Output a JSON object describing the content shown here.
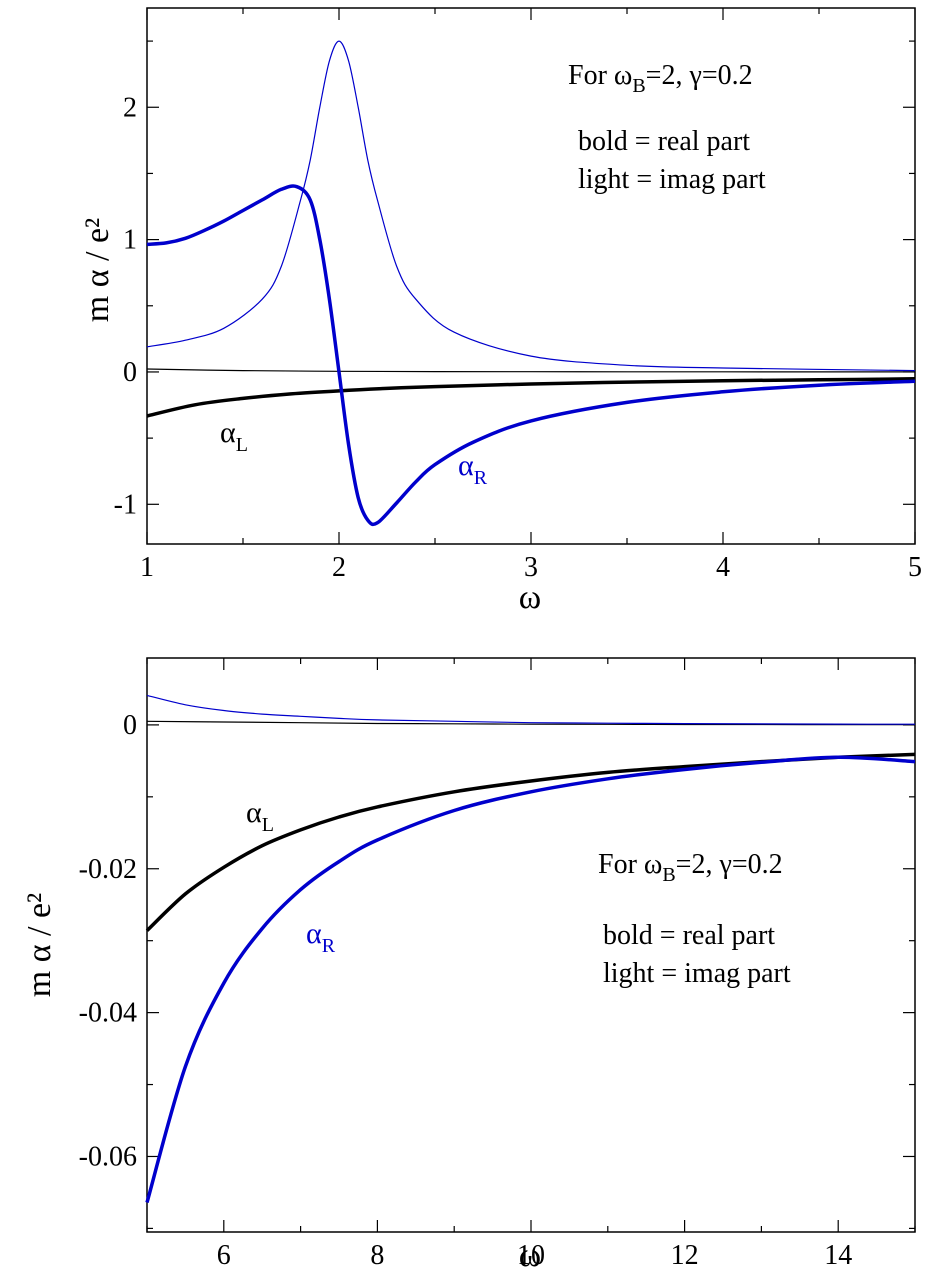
{
  "colors": {
    "black": "#000000",
    "blue": "#0000cc"
  },
  "chart_data": [
    {
      "type": "line",
      "title": "",
      "xlabel": "ω",
      "ylabel": "m α / e²",
      "xlim": [
        1,
        5
      ],
      "ylim": [
        -1.3,
        2.75
      ],
      "xticks": [
        1,
        2,
        3,
        4,
        5
      ],
      "xtick_labels": [
        "1",
        "2",
        "3",
        "4",
        "5"
      ],
      "yticks": [
        -1,
        0,
        1,
        2
      ],
      "ytick_labels": [
        "-1",
        "0",
        "1",
        "2"
      ],
      "grid": false,
      "legend": "none",
      "annotation": {
        "line1_prefix": "For ω",
        "line1_sub": "B",
        "line1_rest": "=2,  γ=0.2",
        "line2": "bold = real part",
        "line3": "light = imag part"
      },
      "series_labels": {
        "L": {
          "main": "α",
          "sub": "L"
        },
        "R": {
          "main": "α",
          "sub": "R"
        }
      },
      "series": [
        {
          "key": "alphaL-real",
          "color": "black",
          "weight": "bold",
          "x": [
            1,
            1.25,
            1.5,
            1.75,
            2,
            2.25,
            2.5,
            3,
            3.5,
            4,
            4.5,
            5
          ],
          "y": [
            -0.333,
            -0.248,
            -0.2,
            -0.166,
            -0.143,
            -0.124,
            -0.111,
            -0.091,
            -0.077,
            -0.066,
            -0.059,
            -0.052
          ]
        },
        {
          "key": "alphaL-imag",
          "color": "black",
          "weight": "light",
          "x": [
            1,
            1.5,
            2,
            2.5,
            3,
            3.5,
            4,
            4.5,
            5
          ],
          "y": [
            0.022,
            0.01,
            0.005,
            0.003,
            0.002,
            0.001,
            0.001,
            0.0005,
            0.0004
          ]
        },
        {
          "key": "alphaR-real",
          "color": "blue",
          "weight": "bold",
          "x": [
            1,
            1.1,
            1.2,
            1.3,
            1.4,
            1.5,
            1.6,
            1.7,
            1.78,
            1.85,
            1.9,
            1.95,
            2,
            2.05,
            2.1,
            2.15,
            2.2,
            2.3,
            2.4,
            2.5,
            2.7,
            3,
            3.5,
            4,
            4.5,
            5
          ],
          "y": [
            0.964,
            0.975,
            1.01,
            1.07,
            1.14,
            1.22,
            1.3,
            1.38,
            1.4,
            1.3,
            1.0,
            0.55,
            0.0,
            -0.55,
            -0.95,
            -1.12,
            -1.14,
            -0.99,
            -0.83,
            -0.7,
            -0.53,
            -0.37,
            -0.23,
            -0.15,
            -0.1,
            -0.07
          ]
        },
        {
          "key": "alphaR-imag",
          "color": "blue",
          "weight": "light",
          "x": [
            1,
            1.2,
            1.4,
            1.6,
            1.7,
            1.8,
            1.85,
            1.9,
            1.95,
            2,
            2.05,
            2.1,
            2.15,
            2.2,
            2.3,
            2.4,
            2.6,
            3,
            3.5,
            4,
            5
          ],
          "y": [
            0.19,
            0.24,
            0.33,
            0.55,
            0.8,
            1.3,
            1.6,
            2.0,
            2.35,
            2.5,
            2.35,
            2.0,
            1.6,
            1.3,
            0.8,
            0.55,
            0.3,
            0.12,
            0.05,
            0.03,
            0.01
          ]
        }
      ]
    },
    {
      "type": "line",
      "title": "",
      "xlabel": "ω",
      "ylabel": "m α / e²",
      "xlim": [
        5,
        15
      ],
      "ylim": [
        -0.0705,
        0.0093
      ],
      "xticks": [
        6,
        8,
        10,
        12,
        14
      ],
      "xtick_labels": [
        "6",
        "8",
        "10",
        "12",
        "14"
      ],
      "yticks": [
        -0.06,
        -0.04,
        -0.02,
        0
      ],
      "ytick_labels": [
        "-0.06",
        "-0.04",
        "-0.02",
        "0"
      ],
      "grid": false,
      "legend": "none",
      "annotation": {
        "line1_prefix": "For ω",
        "line1_sub": "B",
        "line1_rest": "=2,  γ=0.2",
        "line2": "bold = real part",
        "line3": "light = imag part"
      },
      "series_labels": {
        "L": {
          "main": "α",
          "sub": "L"
        },
        "R": {
          "main": "α",
          "sub": "R"
        }
      },
      "series": [
        {
          "key": "alphaL-real",
          "color": "black",
          "weight": "bold",
          "x": [
            5,
            5.5,
            6,
            6.5,
            7,
            7.5,
            8,
            9,
            10,
            11,
            12,
            13,
            14,
            15
          ],
          "y": [
            -0.0286,
            -0.0235,
            -0.0198,
            -0.0168,
            -0.0146,
            -0.0128,
            -0.0114,
            -0.0093,
            -0.0078,
            -0.0066,
            -0.0058,
            -0.0051,
            -0.0045,
            -0.0041
          ]
        },
        {
          "key": "alphaL-imag",
          "color": "black",
          "weight": "light",
          "x": [
            5,
            6,
            7,
            8,
            9,
            10,
            11,
            12,
            13,
            14,
            15
          ],
          "y": [
            0.0005,
            0.0004,
            0.0003,
            0.0002,
            0.00015,
            0.0001,
            8e-05,
            6e-05,
            5e-05,
            4e-05,
            3e-05
          ]
        },
        {
          "key": "alphaR-real",
          "color": "blue",
          "weight": "bold",
          "x": [
            5,
            5.5,
            6,
            6.5,
            7,
            7.5,
            8,
            9,
            10,
            11,
            12,
            13,
            14,
            15
          ],
          "y": [
            -0.0664,
            -0.0475,
            -0.0359,
            -0.0283,
            -0.0229,
            -0.019,
            -0.016,
            -0.0119,
            -0.0093,
            -0.0075,
            -0.0062,
            -0.0052,
            -0.0045,
            -0.0051
          ]
        },
        {
          "key": "alphaR-imag",
          "color": "blue",
          "weight": "light",
          "x": [
            5,
            5.5,
            6,
            6.5,
            7,
            7.5,
            8,
            9,
            10,
            11,
            12,
            13,
            14,
            15
          ],
          "y": [
            0.0041,
            0.0028,
            0.002,
            0.0015,
            0.0012,
            0.0009,
            0.0007,
            0.0005,
            0.0003,
            0.00024,
            0.00018,
            0.00014,
            0.00011,
            9e-05
          ]
        }
      ]
    }
  ]
}
